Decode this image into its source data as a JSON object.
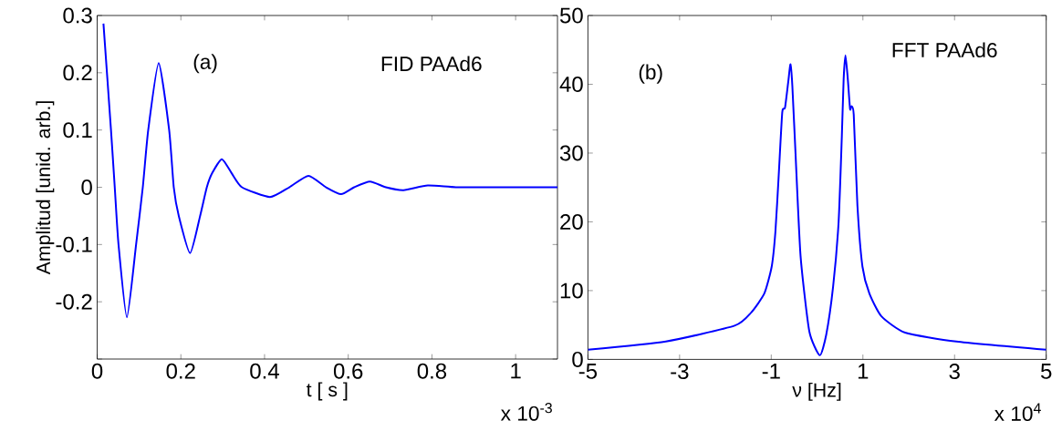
{
  "chart_data": [
    {
      "type": "line",
      "xlabel": "t [ s ]",
      "ylabel": "Amplitud [unid. arb.]",
      "xlim": [
        0,
        1.1
      ],
      "ylim": [
        -0.3,
        0.3
      ],
      "xticks": [
        0,
        0.2,
        0.4,
        0.6,
        0.8,
        1
      ],
      "yticks": [
        {
          "value": -0.3,
          "label": null
        },
        -0.2,
        -0.1,
        0,
        0.1,
        0.2,
        0.3
      ],
      "annotations": [
        "(a)",
        "FID PAAd6",
        "x 10$^{-3}$"
      ],
      "series": [
        {
          "color": "#0000ff",
          "x": [
            0.015,
            0.033,
            0.042,
            0.051,
            0.071,
            0.093,
            0.109,
            0.122,
            0.147,
            0.172,
            0.183,
            0.195,
            0.222,
            0.246,
            0.262,
            0.275,
            0.298,
            0.321,
            0.346,
            0.413,
            0.459,
            0.505,
            0.547,
            0.583,
            0.614,
            0.652,
            0.69,
            0.732,
            0.79,
            0.857,
            0.95,
            1.1
          ],
          "values": [
            0.286,
            0.1,
            0,
            -0.1,
            -0.227,
            -0.1,
            0,
            0.1,
            0.217,
            0.1,
            0,
            -0.05,
            -0.115,
            -0.05,
            0,
            0.025,
            0.049,
            0.025,
            0,
            -0.017,
            0,
            0.02,
            0,
            -0.012,
            0,
            0.01,
            0,
            -0.005,
            0.003,
            0,
            0,
            0
          ]
        }
      ]
    },
    {
      "type": "line",
      "xlabel": "ν [Hz]",
      "xlim": [
        -5,
        5
      ],
      "ylim": [
        0,
        50
      ],
      "xticks": [
        -5,
        -3,
        -1,
        1,
        3,
        5
      ],
      "yticks": [
        0,
        10,
        20,
        30,
        40,
        50
      ],
      "annotations": [
        "(b)",
        "FFT PAAd6",
        "x 10$^{4}$"
      ],
      "series": [
        {
          "color": "#0000ff",
          "x": [
            -5,
            -3.3,
            -1.8,
            -1.44,
            -1.15,
            -0.99,
            -0.91,
            -0.84,
            -0.76,
            -0.7,
            -0.63,
            -0.58,
            -0.54,
            -0.47,
            -0.36,
            -0.17,
            0.06,
            0.2,
            0.35,
            0.47,
            0.54,
            0.58,
            0.62,
            0.67,
            0.72,
            0.75,
            0.8,
            0.88,
            0.99,
            1.14,
            1.4,
            1.92,
            3.04,
            5
          ],
          "values": [
            1.4,
            2.6,
            4.9,
            6.8,
            9.6,
            13.5,
            18.5,
            26.4,
            35.9,
            36.6,
            40.3,
            42.9,
            39.8,
            29.9,
            15.0,
            4.1,
            0.6,
            3.6,
            10.6,
            20.0,
            32.4,
            40.8,
            44.2,
            40.8,
            36.4,
            36.8,
            35.6,
            22.4,
            13.5,
            9.6,
            6.3,
            3.9,
            2.6,
            1.4
          ]
        }
      ]
    }
  ]
}
